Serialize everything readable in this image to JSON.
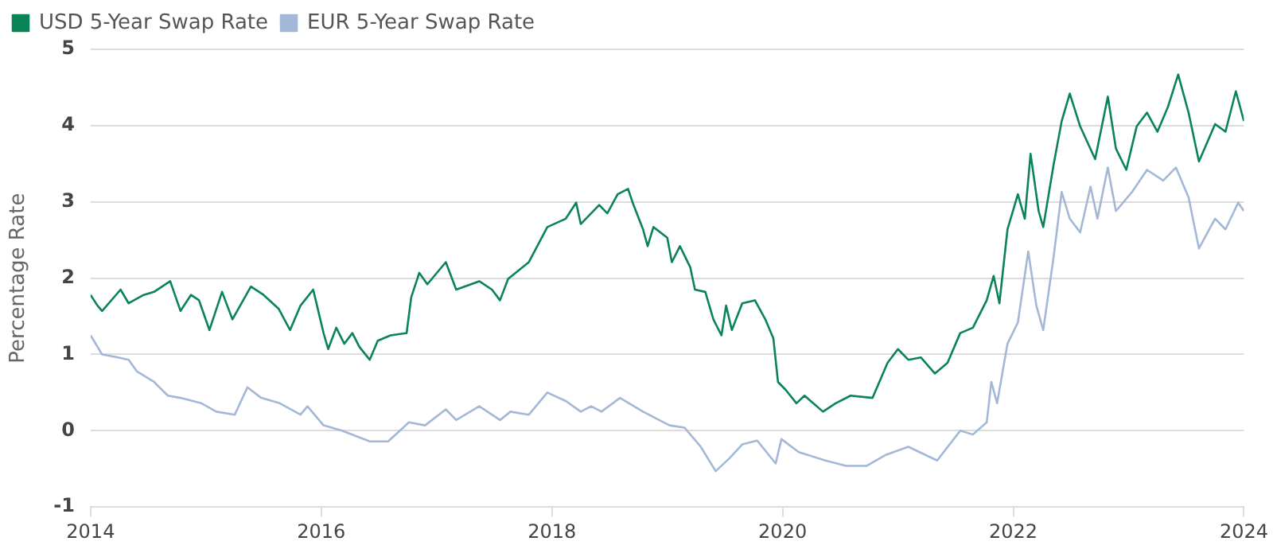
{
  "chart_data": {
    "type": "line",
    "ylabel": "Percentage Rate",
    "legend": "top left",
    "grid": "y",
    "marker": "none",
    "line_style": "solid",
    "xlim": [
      2014,
      2024
    ],
    "xticks": [
      2014,
      2016,
      2018,
      2020,
      2022,
      2024
    ],
    "ylim": [
      -1,
      5
    ],
    "yticks": [
      -1,
      0,
      1,
      2,
      3,
      4,
      5
    ],
    "series": [
      {
        "name": "USD 5-Year Swap Rate",
        "color": "#0a8457",
        "x": [
          2014.0,
          2014.06,
          2014.1,
          2014.26,
          2014.33,
          2014.46,
          2014.55,
          2014.69,
          2014.78,
          2014.87,
          2014.94,
          2015.03,
          2015.14,
          2015.23,
          2015.39,
          2015.5,
          2015.63,
          2015.73,
          2015.82,
          2015.93,
          2016.02,
          2016.06,
          2016.13,
          2016.2,
          2016.27,
          2016.33,
          2016.42,
          2016.49,
          2016.6,
          2016.74,
          2016.78,
          2016.85,
          2016.92,
          2017.08,
          2017.17,
          2017.37,
          2017.48,
          2017.55,
          2017.62,
          2017.8,
          2017.96,
          2018.12,
          2018.21,
          2018.25,
          2018.41,
          2018.48,
          2018.57,
          2018.66,
          2018.7,
          2018.79,
          2018.83,
          2018.88,
          2019.0,
          2019.04,
          2019.11,
          2019.2,
          2019.24,
          2019.33,
          2019.4,
          2019.47,
          2019.51,
          2019.56,
          2019.65,
          2019.76,
          2019.85,
          2019.92,
          2019.96,
          2020.03,
          2020.12,
          2020.19,
          2020.35,
          2020.46,
          2020.59,
          2020.78,
          2020.91,
          2021.0,
          2021.09,
          2021.2,
          2021.32,
          2021.43,
          2021.54,
          2021.65,
          2021.77,
          2021.83,
          2021.88,
          2021.95,
          2022.04,
          2022.1,
          2022.15,
          2022.22,
          2022.26,
          2022.35,
          2022.42,
          2022.49,
          2022.58,
          2022.71,
          2022.82,
          2022.89,
          2022.98,
          2023.07,
          2023.16,
          2023.25,
          2023.34,
          2023.43,
          2023.52,
          2023.61,
          2023.75,
          2023.84,
          2023.93,
          2024.0
        ],
        "values": [
          1.78,
          1.64,
          1.57,
          1.85,
          1.67,
          1.78,
          1.82,
          1.96,
          1.57,
          1.78,
          1.71,
          1.32,
          1.82,
          1.46,
          1.89,
          1.78,
          1.6,
          1.32,
          1.64,
          1.85,
          1.28,
          1.07,
          1.35,
          1.14,
          1.28,
          1.1,
          0.93,
          1.18,
          1.25,
          1.28,
          1.75,
          2.07,
          1.92,
          2.21,
          1.85,
          1.96,
          1.85,
          1.71,
          1.99,
          2.21,
          2.67,
          2.78,
          2.99,
          2.71,
          2.96,
          2.85,
          3.1,
          3.17,
          2.99,
          2.64,
          2.42,
          2.67,
          2.53,
          2.21,
          2.42,
          2.14,
          1.85,
          1.82,
          1.46,
          1.25,
          1.64,
          1.32,
          1.67,
          1.71,
          1.46,
          1.21,
          0.64,
          0.53,
          0.36,
          0.46,
          0.25,
          0.36,
          0.46,
          0.43,
          0.89,
          1.07,
          0.93,
          0.96,
          0.75,
          0.89,
          1.28,
          1.35,
          1.71,
          2.03,
          1.67,
          2.64,
          3.1,
          2.78,
          3.63,
          2.88,
          2.67,
          3.49,
          4.06,
          4.42,
          3.99,
          3.56,
          4.38,
          3.7,
          3.42,
          3.99,
          4.17,
          3.92,
          4.24,
          4.67,
          4.17,
          3.53,
          4.02,
          3.92,
          4.45,
          4.06
        ]
      },
      {
        "name": "EUR 5-Year Swap Rate",
        "color": "#a3b8d6",
        "x": [
          2014.0,
          2014.1,
          2014.24,
          2014.33,
          2014.4,
          2014.55,
          2014.67,
          2014.78,
          2014.96,
          2015.09,
          2015.25,
          2015.36,
          2015.48,
          2015.64,
          2015.82,
          2015.88,
          2016.02,
          2016.18,
          2016.42,
          2016.58,
          2016.76,
          2016.9,
          2017.08,
          2017.17,
          2017.37,
          2017.48,
          2017.55,
          2017.64,
          2017.8,
          2017.96,
          2018.12,
          2018.25,
          2018.34,
          2018.43,
          2018.59,
          2018.79,
          2019.02,
          2019.15,
          2019.29,
          2019.42,
          2019.54,
          2019.65,
          2019.78,
          2019.94,
          2019.99,
          2020.14,
          2020.37,
          2020.55,
          2020.73,
          2020.89,
          2021.09,
          2021.34,
          2021.54,
          2021.65,
          2021.77,
          2021.81,
          2021.86,
          2021.95,
          2022.04,
          2022.13,
          2022.2,
          2022.26,
          2022.35,
          2022.42,
          2022.49,
          2022.58,
          2022.67,
          2022.73,
          2022.82,
          2022.89,
          2023.03,
          2023.16,
          2023.3,
          2023.41,
          2023.52,
          2023.61,
          2023.75,
          2023.84,
          2023.95,
          2024.0
        ],
        "values": [
          1.25,
          1.0,
          0.96,
          0.93,
          0.78,
          0.64,
          0.46,
          0.43,
          0.36,
          0.25,
          0.21,
          0.57,
          0.43,
          0.36,
          0.21,
          0.32,
          0.07,
          0.0,
          -0.14,
          -0.14,
          0.11,
          0.07,
          0.28,
          0.14,
          0.32,
          0.21,
          0.14,
          0.25,
          0.21,
          0.5,
          0.39,
          0.25,
          0.32,
          0.25,
          0.43,
          0.25,
          0.07,
          0.04,
          -0.21,
          -0.53,
          -0.36,
          -0.18,
          -0.13,
          -0.43,
          -0.11,
          -0.28,
          -0.39,
          -0.46,
          -0.46,
          -0.32,
          -0.21,
          -0.39,
          0.0,
          -0.05,
          0.11,
          0.64,
          0.36,
          1.14,
          1.42,
          2.35,
          1.64,
          1.32,
          2.28,
          3.13,
          2.78,
          2.6,
          3.2,
          2.78,
          3.45,
          2.88,
          3.13,
          3.42,
          3.28,
          3.45,
          3.06,
          2.39,
          2.78,
          2.64,
          2.99,
          2.88
        ]
      }
    ]
  }
}
